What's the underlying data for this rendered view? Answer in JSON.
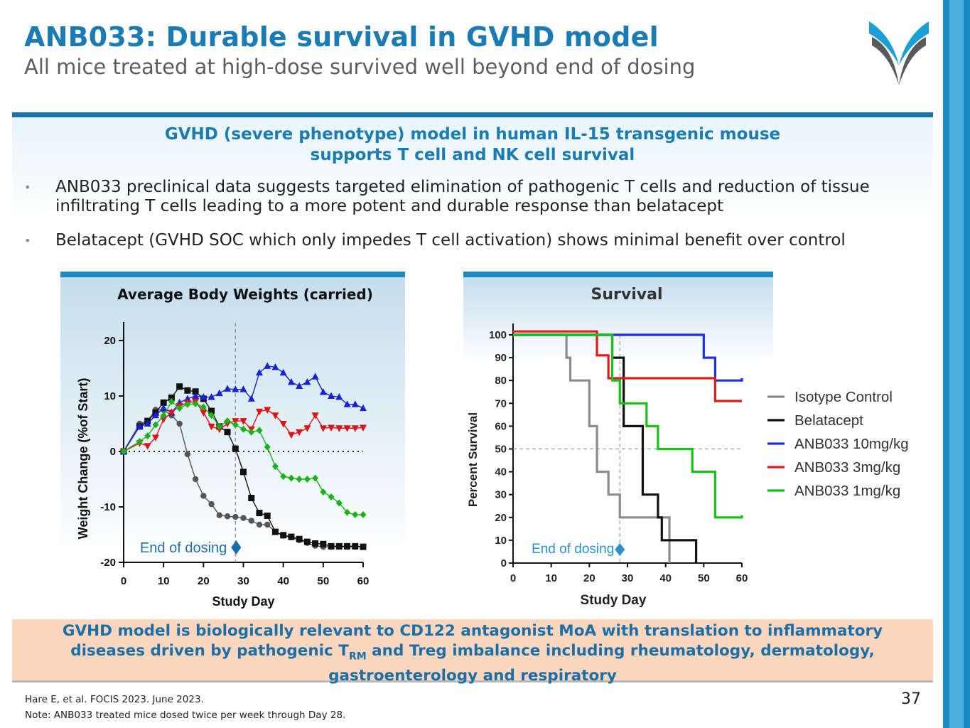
{
  "slide": {
    "title": "ANB033: Durable survival in GVHD model",
    "subtitle": "All mice treated at high-dose survived well beyond end of dosing",
    "panel_heading_line1": "GVHD (severe phenotype) model in human IL-15 transgenic mouse",
    "panel_heading_line2": "supports T cell and NK cell survival",
    "bullets": [
      {
        "marker": "•",
        "text": "ANB033 preclinical data suggests targeted elimination of pathogenic T cells and reduction of tissue infiltrating T cells leading to a more potent and durable response than belatacept"
      },
      {
        "marker": "•",
        "text": "Belatacept (GVHD SOC which only impedes T cell activation) shows minimal benefit over control"
      }
    ],
    "conclusion_line1": "GVHD model is biologically relevant to CD122 antagonist MoA with translation to inflammatory",
    "conclusion_line2_pre": "diseases driven by pathogenic T",
    "conclusion_line2_sub": "RM",
    "conclusion_line2_post": " and Treg imbalance including rheumatology, dermatology,",
    "conclusion_line3": "gastroenterology and respiratory",
    "footnote1": "Hare E, et al. FOCIS 2023. June 2023.",
    "footnote2": "Note: ANB033 treated mice dosed twice per week through Day 28.",
    "page_number": "37"
  },
  "colors": {
    "brand_blue": "#1b7bb3",
    "accent_bar": "#1a8bc2",
    "conclusion_bg": "#fcd6bd"
  },
  "chart_data": [
    {
      "type": "line",
      "title": "Average Body Weights (carried)",
      "xlabel": "Study Day",
      "ylabel": "Weight Change (%of Start)",
      "xlim": [
        0,
        60
      ],
      "ylim": [
        -20,
        20
      ],
      "xticks": [
        0,
        10,
        20,
        30,
        40,
        50,
        60
      ],
      "yticks": [
        20,
        10,
        0,
        -10,
        -20
      ],
      "ytick_labels": [
        "20",
        "10",
        "0",
        "-10",
        "-20"
      ],
      "reference_line": {
        "y": 0,
        "style": "dotted"
      },
      "vline": {
        "x": 28,
        "label": "End of dosing"
      },
      "series": [
        {
          "name": "Isotype Control",
          "color": "#555555",
          "marker": "circle",
          "x": [
            0,
            4,
            6,
            8,
            10,
            12,
            14,
            16,
            18,
            20,
            22,
            24,
            26,
            28,
            30,
            32,
            34,
            36,
            38,
            40,
            42,
            44,
            46,
            48,
            50,
            52,
            54,
            56,
            58,
            60
          ],
          "y": [
            0,
            5,
            5.5,
            7.5,
            7.5,
            6.5,
            5,
            -0.5,
            -5,
            -8,
            -9.5,
            -11.5,
            -11.7,
            -11.8,
            -12,
            -12.5,
            -13.2,
            -13.2,
            -14.5,
            -15.2,
            -15.5,
            -16,
            -16.5,
            -17,
            -17.2,
            -17.2,
            -17.2,
            -17.2,
            -17.2,
            -17.2
          ]
        },
        {
          "name": "Belatacept",
          "color": "#111111",
          "marker": "square",
          "x": [
            0,
            4,
            6,
            8,
            10,
            12,
            14,
            16,
            18,
            20,
            22,
            24,
            26,
            28,
            30,
            32,
            34,
            36,
            38,
            40,
            42,
            44,
            46,
            48,
            50,
            52,
            54,
            56,
            58,
            60
          ],
          "y": [
            0,
            4.5,
            5.5,
            7,
            8.8,
            9.7,
            11.7,
            11,
            10.8,
            9.5,
            7.3,
            4.5,
            3.5,
            0.5,
            -3.7,
            -8.4,
            -11.1,
            -11.6,
            -14.5,
            -15.1,
            -15.4,
            -15.8,
            -16.3,
            -16.6,
            -16.7,
            -17.1,
            -17.1,
            -17.1,
            -17.1,
            -17.2
          ]
        },
        {
          "name": "ANB033 10mg/kg",
          "color": "#1523d8",
          "marker": "triangle-up",
          "x": [
            0,
            4,
            6,
            8,
            10,
            12,
            14,
            16,
            18,
            20,
            22,
            24,
            26,
            28,
            30,
            32,
            34,
            36,
            38,
            40,
            42,
            44,
            46,
            48,
            50,
            52,
            54,
            56,
            58,
            60
          ],
          "y": [
            0,
            4.5,
            5,
            6.5,
            7.8,
            7,
            8.8,
            9.5,
            10,
            9.8,
            9.8,
            10.5,
            11.3,
            11.2,
            11.2,
            9.5,
            14.2,
            15.4,
            15.2,
            14.2,
            12.5,
            11.8,
            12.5,
            13.5,
            10.7,
            10,
            9.8,
            8.5,
            8.5,
            7.8
          ]
        },
        {
          "name": "ANB033 3mg/kg",
          "color": "#dd1414",
          "marker": "triangle-down",
          "x": [
            0,
            4,
            6,
            8,
            10,
            12,
            14,
            16,
            18,
            20,
            22,
            24,
            26,
            28,
            30,
            32,
            34,
            36,
            38,
            40,
            42,
            44,
            46,
            48,
            50,
            52,
            54,
            56,
            58,
            60
          ],
          "y": [
            0,
            1.5,
            1,
            2.5,
            5.8,
            7,
            8.2,
            8.8,
            9,
            7,
            4.5,
            4,
            5,
            5.5,
            5.5,
            4,
            7.2,
            7.5,
            6.5,
            5,
            3,
            3.5,
            4.2,
            6.5,
            4.2,
            4.3,
            4.2,
            4.2,
            4.2,
            4.3
          ]
        },
        {
          "name": "ANB033 1mg/kg",
          "color": "#17b317",
          "marker": "diamond",
          "x": [
            0,
            4,
            6,
            8,
            10,
            12,
            14,
            16,
            18,
            20,
            22,
            24,
            26,
            28,
            30,
            32,
            34,
            36,
            38,
            40,
            42,
            44,
            46,
            48,
            50,
            52,
            54,
            56,
            58,
            60
          ],
          "y": [
            0,
            1.8,
            2.8,
            4.8,
            6.5,
            9,
            7.8,
            8.5,
            8.6,
            8,
            6.5,
            4.5,
            5.5,
            4.8,
            4,
            3.5,
            3.8,
            0.8,
            -2.7,
            -4.5,
            -4.8,
            -5,
            -5,
            -4.8,
            -7.3,
            -8.2,
            -9.3,
            -11,
            -11.4,
            -11.4
          ]
        }
      ]
    },
    {
      "type": "line",
      "title": "Survival",
      "xlabel": "Study Day",
      "ylabel": "Percent Survival",
      "xlim": [
        0,
        60
      ],
      "ylim": [
        0,
        100
      ],
      "xticks": [
        0,
        10,
        20,
        30,
        40,
        50,
        60
      ],
      "yticks": [
        0,
        10,
        20,
        30,
        40,
        50,
        60,
        70,
        80,
        90,
        100
      ],
      "reference_line": {
        "y": 50,
        "style": "dashed"
      },
      "vline": {
        "x": 28,
        "label": "End of dosing"
      },
      "legend_position": "right",
      "series": [
        {
          "name": "Isotype Control",
          "color": "#8c8c8c",
          "x": [
            0,
            13,
            14,
            15,
            18,
            20,
            21,
            22,
            25,
            28,
            41,
            41
          ],
          "y": [
            100,
            100,
            90,
            80,
            80,
            60,
            60,
            40,
            30,
            20,
            20,
            0
          ]
        },
        {
          "name": "Belatacept",
          "color": "#111111",
          "x": [
            0,
            25,
            26,
            29,
            29,
            31,
            34,
            34,
            38,
            38,
            39,
            39,
            48,
            48
          ],
          "y": [
            100,
            100,
            90,
            90,
            60,
            60,
            50,
            30,
            30,
            20,
            20,
            10,
            10,
            0
          ]
        },
        {
          "name": "ANB033 10mg/kg",
          "color": "#1d2fe6",
          "x": [
            0,
            50,
            50,
            53,
            53,
            60
          ],
          "y": [
            100,
            100,
            90,
            90,
            80,
            81
          ]
        },
        {
          "name": "ANB033 3mg/kg",
          "color": "#e11a1a",
          "x": [
            0,
            22,
            22,
            25,
            25,
            27,
            53,
            53,
            60
          ],
          "y": [
            101.5,
            101.5,
            91,
            91,
            81,
            81,
            81,
            71,
            71
          ]
        },
        {
          "name": "ANB033 1mg/kg",
          "color": "#15c215",
          "x": [
            0,
            24,
            26,
            26,
            28,
            28,
            35,
            35,
            38,
            38,
            47,
            47,
            53,
            53,
            60
          ],
          "y": [
            100,
            100,
            90,
            80,
            80,
            70,
            70,
            60,
            60,
            50,
            50,
            40,
            40,
            20,
            21
          ]
        }
      ]
    }
  ]
}
